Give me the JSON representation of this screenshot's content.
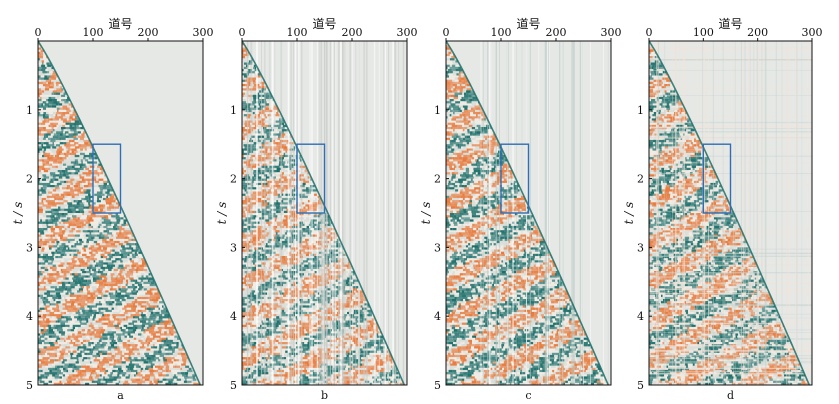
{
  "chart_data": [
    {
      "type": "heatmap",
      "panel_label": "a",
      "xlabel": "道号",
      "ylabel": "t / s",
      "xlim": [
        0,
        300
      ],
      "ylim": [
        0,
        5
      ],
      "x_ticks": [
        "0",
        "100",
        "200",
        "300"
      ],
      "y_ticks": [
        "1",
        "2",
        "3",
        "4",
        "5"
      ],
      "direct_wave": {
        "start_trace": 0,
        "end_trace": 295,
        "end_time": 5.0
      },
      "highlight_box": {
        "trace_min": 100,
        "trace_max": 150,
        "time_min": 1.5,
        "time_max": 2.5
      },
      "noise_style": "clean"
    },
    {
      "type": "heatmap",
      "panel_label": "b",
      "xlabel": "道号",
      "ylabel": "t / s",
      "xlim": [
        0,
        300
      ],
      "ylim": [
        0,
        5
      ],
      "x_ticks": [
        "0",
        "100",
        "200",
        "300"
      ],
      "y_ticks": [
        "1",
        "2",
        "3",
        "4",
        "5"
      ],
      "direct_wave": {
        "start_trace": 0,
        "end_trace": 295,
        "end_time": 5.0
      },
      "highlight_box": {
        "trace_min": 100,
        "trace_max": 150,
        "time_min": 1.5,
        "time_max": 2.5
      },
      "noise_style": "vertical-stripes"
    },
    {
      "type": "heatmap",
      "panel_label": "c",
      "xlabel": "道号",
      "ylabel": "t / s",
      "xlim": [
        0,
        300
      ],
      "ylim": [
        0,
        5
      ],
      "x_ticks": [
        "0",
        "100",
        "200",
        "300"
      ],
      "y_ticks": [
        "1",
        "2",
        "3",
        "4",
        "5"
      ],
      "direct_wave": {
        "start_trace": 0,
        "end_trace": 295,
        "end_time": 5.0
      },
      "highlight_box": {
        "trace_min": 100,
        "trace_max": 150,
        "time_min": 1.5,
        "time_max": 2.5
      },
      "noise_style": "sparse-vertical-traces"
    },
    {
      "type": "heatmap",
      "panel_label": "d",
      "xlabel": "道号",
      "ylabel": "t / s",
      "xlim": [
        0,
        300
      ],
      "ylim": [
        0,
        5
      ],
      "x_ticks": [
        "0",
        "100",
        "200",
        "300"
      ],
      "y_ticks": [
        "1",
        "2",
        "3",
        "4",
        "5"
      ],
      "direct_wave": {
        "start_trace": 0,
        "end_trace": 295,
        "end_time": 5.0
      },
      "highlight_box": {
        "trace_min": 100,
        "trace_max": 150,
        "time_min": 1.5,
        "time_max": 2.5
      },
      "noise_style": "grid-noise"
    }
  ],
  "colors": {
    "positive": "#e87a3c",
    "negative": "#1e6f6a",
    "neutral": "#e6e8e6",
    "box": "#2f6eb5",
    "axis": "#111111"
  }
}
